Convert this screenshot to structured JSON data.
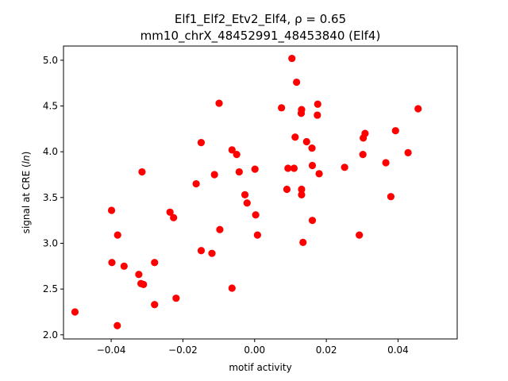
{
  "chart_data": {
    "type": "scatter",
    "title_line1": "Elf1_Elf2_Etv2_Elf4, ρ = 0.65",
    "title_line2": "mm10_chrX_48452991_48453840 (Elf4)",
    "xlabel": "motif activity",
    "ylabel": "signal at CRE (ln)",
    "xlim": [
      -0.0533,
      0.0565
    ],
    "ylim": [
      1.955,
      5.155
    ],
    "xticks": [
      -0.04,
      -0.02,
      0.0,
      0.02,
      0.04
    ],
    "xtick_labels": [
      "−0.04",
      "−0.02",
      "0.00",
      "0.02",
      "0.04"
    ],
    "yticks": [
      2.0,
      2.5,
      3.0,
      3.5,
      4.0,
      4.5,
      5.0
    ],
    "ytick_labels": [
      "2.0",
      "2.5",
      "3.0",
      "3.5",
      "4.0",
      "4.5",
      "5.0"
    ],
    "grid": false,
    "marker_color": "#ff0000",
    "points": [
      {
        "x": -0.0501,
        "y": 2.25
      },
      {
        "x": -0.0399,
        "y": 3.36
      },
      {
        "x": -0.0398,
        "y": 2.79
      },
      {
        "x": -0.0382,
        "y": 3.09
      },
      {
        "x": -0.0383,
        "y": 2.1
      },
      {
        "x": -0.0364,
        "y": 2.75
      },
      {
        "x": -0.0323,
        "y": 2.66
      },
      {
        "x": -0.0317,
        "y": 2.56
      },
      {
        "x": -0.0314,
        "y": 3.78
      },
      {
        "x": -0.031,
        "y": 2.55
      },
      {
        "x": -0.0279,
        "y": 2.79
      },
      {
        "x": -0.0279,
        "y": 2.33
      },
      {
        "x": -0.0236,
        "y": 3.34
      },
      {
        "x": -0.0226,
        "y": 3.28
      },
      {
        "x": -0.0219,
        "y": 2.4
      },
      {
        "x": -0.0163,
        "y": 3.65
      },
      {
        "x": -0.0149,
        "y": 4.1
      },
      {
        "x": -0.0149,
        "y": 2.92
      },
      {
        "x": -0.0119,
        "y": 2.89
      },
      {
        "x": -0.0112,
        "y": 3.75
      },
      {
        "x": -0.0099,
        "y": 4.53
      },
      {
        "x": -0.0097,
        "y": 3.15
      },
      {
        "x": -0.0063,
        "y": 4.02
      },
      {
        "x": -0.0063,
        "y": 2.51
      },
      {
        "x": -0.005,
        "y": 3.97
      },
      {
        "x": -0.0043,
        "y": 3.78
      },
      {
        "x": -0.0027,
        "y": 3.53
      },
      {
        "x": -0.0021,
        "y": 3.44
      },
      {
        "x": 0.0001,
        "y": 3.81
      },
      {
        "x": 0.0003,
        "y": 3.31
      },
      {
        "x": 0.0008,
        "y": 3.09
      },
      {
        "x": 0.0075,
        "y": 4.48
      },
      {
        "x": 0.009,
        "y": 3.59
      },
      {
        "x": 0.0093,
        "y": 3.82
      },
      {
        "x": 0.0104,
        "y": 5.02
      },
      {
        "x": 0.011,
        "y": 3.82
      },
      {
        "x": 0.0113,
        "y": 4.16
      },
      {
        "x": 0.0117,
        "y": 4.76
      },
      {
        "x": 0.013,
        "y": 4.42
      },
      {
        "x": 0.0131,
        "y": 4.46
      },
      {
        "x": 0.0131,
        "y": 3.59
      },
      {
        "x": 0.0131,
        "y": 3.53
      },
      {
        "x": 0.0135,
        "y": 3.01
      },
      {
        "x": 0.0145,
        "y": 4.11
      },
      {
        "x": 0.016,
        "y": 4.04
      },
      {
        "x": 0.0161,
        "y": 3.85
      },
      {
        "x": 0.0161,
        "y": 3.25
      },
      {
        "x": 0.0175,
        "y": 4.4
      },
      {
        "x": 0.0176,
        "y": 4.52
      },
      {
        "x": 0.018,
        "y": 3.76
      },
      {
        "x": 0.0251,
        "y": 3.83
      },
      {
        "x": 0.0292,
        "y": 3.09
      },
      {
        "x": 0.0302,
        "y": 3.97
      },
      {
        "x": 0.0303,
        "y": 4.15
      },
      {
        "x": 0.0308,
        "y": 4.2
      },
      {
        "x": 0.0366,
        "y": 3.88
      },
      {
        "x": 0.038,
        "y": 3.51
      },
      {
        "x": 0.0393,
        "y": 4.23
      },
      {
        "x": 0.0428,
        "y": 3.99
      },
      {
        "x": 0.0456,
        "y": 4.47
      }
    ]
  }
}
